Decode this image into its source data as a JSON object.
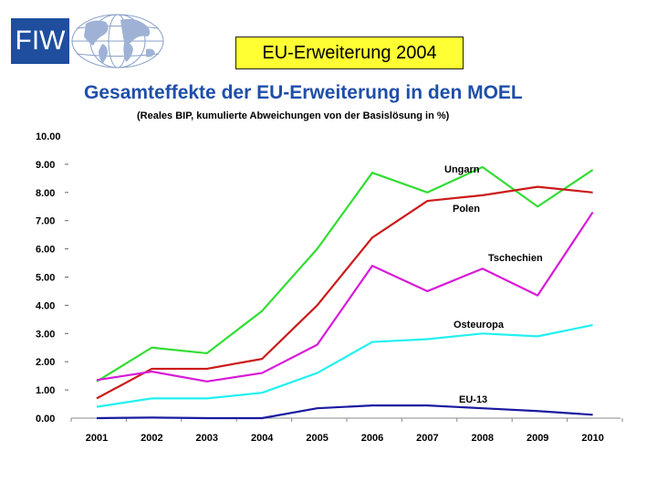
{
  "logo": {
    "text": "FIW"
  },
  "header": {
    "title": "EU-Erweiterung 2004"
  },
  "chart_data": {
    "type": "line",
    "title": "Gesamteffekte der EU-Erweiterung in den MOEL",
    "subtitle": "(Reales BIP, kumulierte Abweichungen von der Basislösung in %)",
    "x": [
      "2001",
      "2002",
      "2003",
      "2004",
      "2005",
      "2006",
      "2007",
      "2008",
      "2009",
      "2010"
    ],
    "ylim": [
      0,
      10
    ],
    "yticks": [
      "0.00",
      "1.00",
      "2.00",
      "3.00",
      "4.00",
      "5.00",
      "6.00",
      "7.00",
      "8.00",
      "9.00",
      "10.00"
    ],
    "grid": false,
    "series": [
      {
        "name": "Ungarn",
        "color": "#33dd33",
        "values": [
          1.3,
          2.5,
          2.3,
          3.8,
          6.0,
          8.7,
          8.0,
          8.9,
          7.5,
          8.8
        ]
      },
      {
        "name": "Polen",
        "color": "#cc1a1a",
        "values": [
          0.7,
          1.75,
          1.75,
          2.1,
          4.0,
          6.4,
          7.7,
          7.9,
          8.2,
          8.0
        ]
      },
      {
        "name": "Tschechien",
        "color": "#d81ad8",
        "values": [
          1.35,
          1.65,
          1.3,
          1.6,
          2.6,
          5.4,
          4.5,
          5.3,
          4.35,
          7.3
        ]
      },
      {
        "name": "Osteuropa",
        "color": "#22f0f0",
        "values": [
          0.4,
          0.7,
          0.7,
          0.9,
          1.6,
          2.7,
          2.8,
          3.0,
          2.9,
          3.3
        ]
      },
      {
        "name": "EU-13",
        "color": "#1a1aa0",
        "values": [
          0.0,
          0.02,
          0.0,
          0.0,
          0.35,
          0.45,
          0.45,
          0.35,
          0.25,
          0.12
        ]
      }
    ]
  }
}
